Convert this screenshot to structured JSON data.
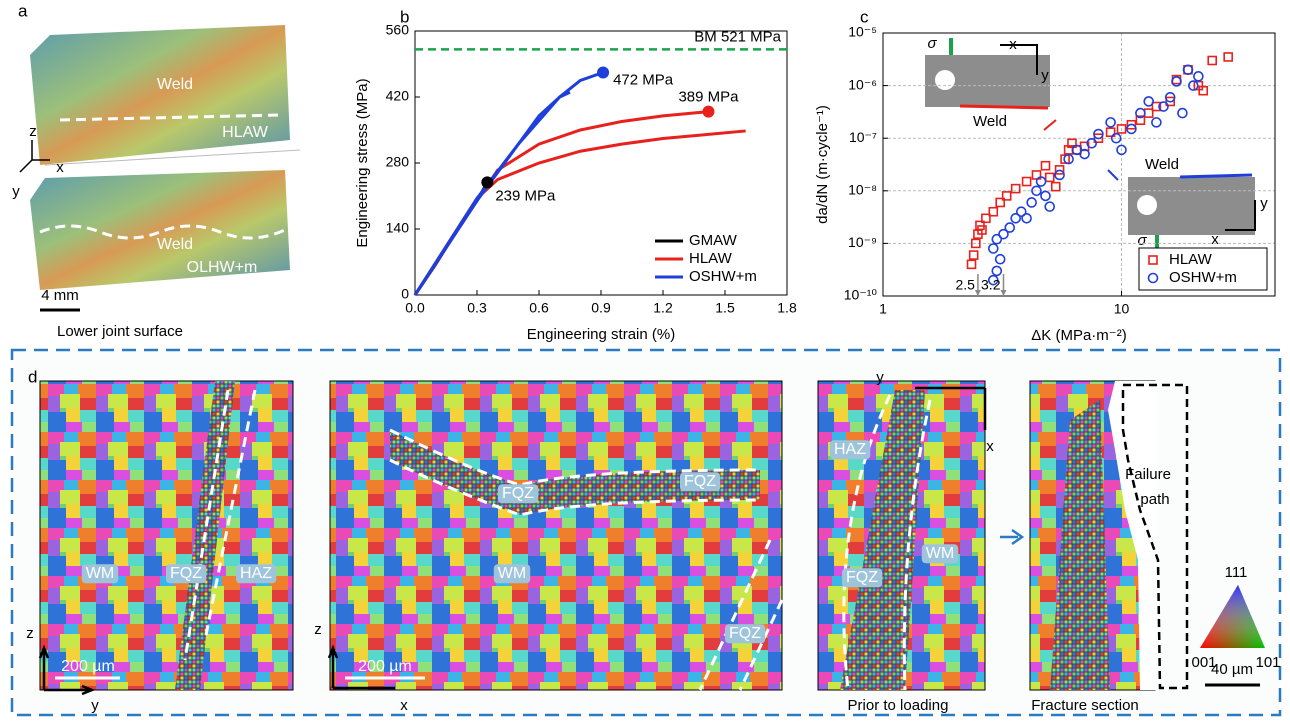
{
  "chart_data": [
    {
      "type": "line",
      "label": "b",
      "xlabel": "Engineering strain (%)",
      "ylabel": "Engineering stress (MPa)",
      "xlim": [
        0,
        1.8
      ],
      "xticks": [
        {
          "value": 0,
          "label": "0.0"
        },
        0.3,
        0.6,
        0.9,
        1.2,
        1.5,
        1.8
      ],
      "ylim": [
        0,
        560
      ],
      "yticks": [
        0,
        140,
        280,
        420,
        560
      ],
      "grid": false,
      "legend": "lower right",
      "hline": {
        "value": 521,
        "label": "BM 521 MPa",
        "color": "#1aa34a"
      },
      "series": [
        {
          "name": "GMAW",
          "color": "#000000",
          "x": [
            0,
            0.1,
            0.2,
            0.3,
            0.35
          ],
          "values": [
            0,
            65,
            135,
            200,
            239
          ]
        },
        {
          "name": "HLAW",
          "color": "#e8211c",
          "x": [
            0,
            0.3,
            0.4,
            0.6,
            0.8,
            1.0,
            1.2,
            1.42
          ],
          "values": [
            0,
            200,
            265,
            320,
            350,
            368,
            380,
            389
          ]
        },
        {
          "color": "#e8211c",
          "x": [
            0,
            0.3,
            0.4,
            0.6,
            0.8,
            1.0,
            1.2,
            1.4,
            1.6
          ],
          "values": [
            0,
            205,
            245,
            280,
            305,
            320,
            332,
            340,
            348
          ]
        },
        {
          "name": "OSHW+m",
          "color": "#1f3fdb",
          "x": [
            0,
            0.3,
            0.5,
            0.7,
            0.8,
            0.91
          ],
          "values": [
            0,
            200,
            320,
            420,
            455,
            472
          ]
        },
        {
          "color": "#1f3fdb",
          "x": [
            0,
            0.3,
            0.5,
            0.6,
            0.7,
            0.75
          ],
          "values": [
            0,
            205,
            320,
            380,
            420,
            430
          ]
        }
      ],
      "markers": [
        {
          "x": 0.91,
          "y": 472,
          "label": "472 MPa",
          "color": "#1f3fdb"
        },
        {
          "x": 1.42,
          "y": 389,
          "label": "389 MPa",
          "color": "#e8211c"
        },
        {
          "x": 0.35,
          "y": 239,
          "label": "239 MPa",
          "color": "#000000"
        }
      ]
    },
    {
      "type": "scatter",
      "label": "c",
      "xlabel": "ΔK (MPa·m⁻²)",
      "ylabel": "da/dN (m·cycle⁻¹)",
      "xscale": "log",
      "yscale": "log",
      "xlim": [
        1,
        44
      ],
      "xticks": [
        1,
        10
      ],
      "ylim": [
        1e-10,
        1e-05
      ],
      "yticks": [
        {
          "value": 1e-10,
          "label": "10⁻¹⁰"
        },
        {
          "value": 1e-09,
          "label": "10⁻⁹"
        },
        {
          "value": 1e-08,
          "label": "10⁻⁸"
        },
        {
          "value": 1e-07,
          "label": "10⁻⁷"
        },
        {
          "value": 1e-06,
          "label": "10⁻⁶"
        },
        {
          "value": 1e-05,
          "label": "10⁻⁵"
        }
      ],
      "grid": true,
      "legend": "lower right",
      "series": [
        {
          "name": "HLAW",
          "color": "#e8211c",
          "marker": "square",
          "x": [
            2.35,
            2.4,
            2.45,
            2.5,
            2.55,
            2.6,
            2.7,
            2.9,
            3.1,
            3.3,
            3.6,
            4.0,
            4.4,
            4.8,
            5.0,
            5.3,
            5.5,
            5.8,
            6.0,
            6.2,
            6.5,
            7.0,
            8.0,
            9.0,
            10,
            11,
            12,
            13,
            14,
            16,
            17,
            19,
            21,
            22,
            24,
            28
          ],
          "values": [
            4e-10,
            6e-10,
            1e-09,
            1.5e-09,
            2.2e-09,
            1.8e-09,
            3e-09,
            4e-09,
            6e-09,
            8e-09,
            1.1e-08,
            1.5e-08,
            2e-08,
            3e-08,
            1.8e-08,
            1.2e-08,
            2.5e-08,
            4e-08,
            6e-08,
            8e-08,
            6e-08,
            7e-08,
            1e-07,
            1.3e-07,
            1.5e-07,
            1.8e-07,
            2.2e-07,
            3e-07,
            4e-07,
            5e-07,
            1.3e-06,
            2e-06,
            1e-06,
            8e-07,
            3e-06,
            3.5e-06
          ]
        },
        {
          "name": "OSHW+m",
          "color": "#1f3fdb",
          "marker": "circle",
          "x": [
            2.9,
            3.0,
            3.1,
            2.9,
            3.0,
            3.2,
            3.4,
            3.6,
            3.8,
            4.0,
            4.2,
            4.4,
            4.6,
            4.8,
            5.0,
            5.5,
            6.0,
            6.5,
            7,
            7.5,
            8,
            9,
            9.5,
            10,
            11,
            12,
            13,
            14,
            15,
            16,
            17,
            18,
            19,
            20,
            21
          ],
          "values": [
            2e-10,
            3e-10,
            5e-10,
            8e-10,
            1.2e-09,
            1.5e-09,
            2e-09,
            3e-09,
            4e-09,
            3e-09,
            6e-09,
            1e-08,
            1.5e-08,
            8e-09,
            5e-09,
            2e-08,
            4e-08,
            6e-08,
            5e-08,
            8e-08,
            1.2e-07,
            2e-07,
            1e-07,
            6e-08,
            1.5e-07,
            3e-07,
            5e-07,
            2e-07,
            4e-07,
            6e-07,
            1.2e-06,
            3e-07,
            2e-06,
            1e-06,
            1.5e-06
          ]
        }
      ],
      "markers": [
        {
          "x": 2.5,
          "label": "2.5"
        },
        {
          "x": 3.2,
          "label": "3.2"
        }
      ],
      "insets": [
        {
          "sigma": "σ",
          "x": "x",
          "y": "y",
          "weld": "Weld"
        },
        {
          "sigma": "σ",
          "x": "x",
          "y": "y",
          "weld": "Weld"
        }
      ]
    }
  ],
  "panel_a": {
    "label": "a",
    "weld_top": "Weld",
    "hlaw": "HLAW",
    "axis_z": "z",
    "axis_x": "x",
    "axis_y": "y",
    "weld_bottom": "Weld",
    "olhw": "OLHW+m",
    "scale": "4 mm",
    "caption": "Lower joint surface"
  },
  "panel_d": {
    "label": "d",
    "map1": {
      "wm": "WM",
      "fqz": "FQZ",
      "haz": "HAZ",
      "axis_z": "z",
      "axis_y": "y",
      "scale": "200 µm"
    },
    "map2": {
      "fqz1": "FQZ",
      "fqz2": "FQZ",
      "wm": "WM",
      "fqz3": "FQZ",
      "axis_z": "z",
      "axis_x": "x",
      "scale": "200 µm"
    },
    "map3": {
      "axis_y": "y",
      "axis_x": "x",
      "haz": "HAZ",
      "fqz": "FQZ",
      "wm": "WM",
      "caption": "Prior to loading"
    },
    "map4": {
      "failure": "Failure",
      "path": "path",
      "caption": "Fracture section"
    },
    "ipf": {
      "top": "111",
      "left": "001",
      "right": "101"
    },
    "scale": "40 µm"
  }
}
